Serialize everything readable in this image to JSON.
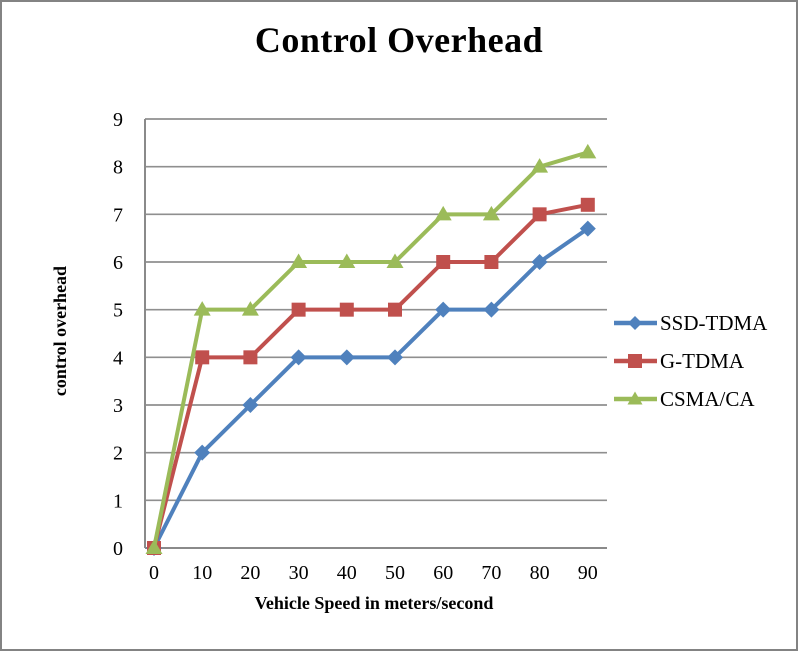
{
  "frame": {
    "border_color": "#838383",
    "background": "#FFFFFF"
  },
  "chart_data": {
    "type": "line",
    "title": "Control Overhead",
    "xlabel": "Vehicle Speed in meters/second",
    "ylabel": "control overhead",
    "x": [
      0,
      10,
      20,
      30,
      40,
      50,
      60,
      70,
      80,
      90
    ],
    "xticklabels": [
      "0",
      "10",
      "20",
      "30",
      "40",
      "50",
      "60",
      "70",
      "80",
      "90"
    ],
    "yticks": [
      0,
      1,
      2,
      3,
      4,
      5,
      6,
      7,
      8,
      9
    ],
    "ylim": [
      0,
      9
    ],
    "grid": "horizontal",
    "legend_position": "right",
    "axis_color": "#8A8A8A",
    "gridline_color": "#8F8F8F",
    "series": [
      {
        "name": "SSD-TDMA",
        "marker": "diamond",
        "color": "#4F81BD",
        "values": [
          0,
          2,
          3,
          4,
          4,
          4,
          5,
          5,
          6,
          6.7
        ]
      },
      {
        "name": "G-TDMA",
        "marker": "square",
        "color": "#C0504D",
        "values": [
          0,
          4,
          4,
          5,
          5,
          5,
          6,
          6,
          7,
          7.2
        ]
      },
      {
        "name": "CSMA/CA",
        "marker": "triangle",
        "color": "#9BBB59",
        "values": [
          0,
          5,
          5,
          6,
          6,
          6,
          7,
          7,
          8,
          8.3
        ]
      }
    ]
  }
}
